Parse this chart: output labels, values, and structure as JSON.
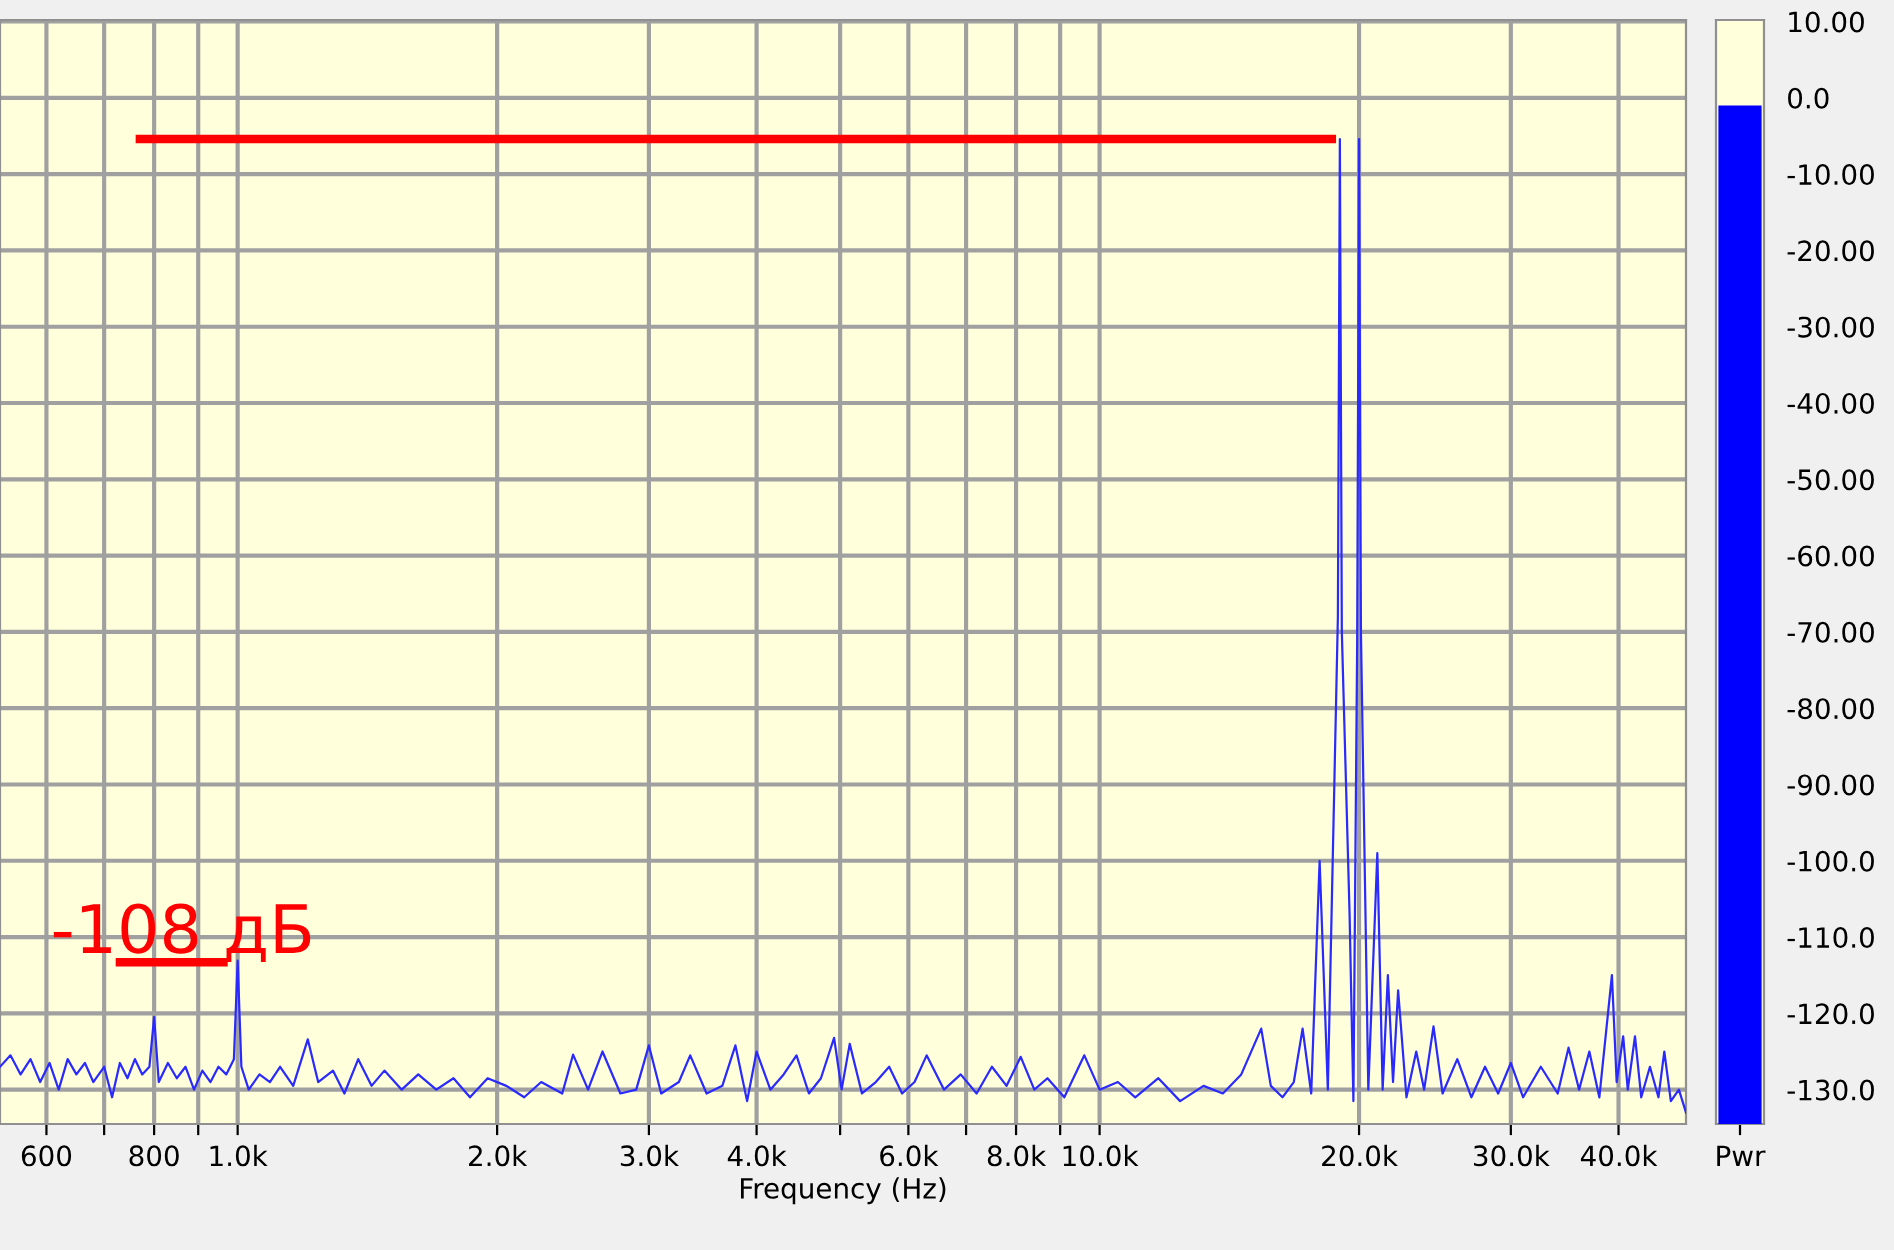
{
  "chart_data": [
    {
      "type": "line",
      "xlabel": "Frequency (Hz)",
      "log": "x",
      "grid": true,
      "tick_labels": "x",
      "xlim": [
        530,
        47900
      ],
      "xticks": [
        600,
        {
          "value": 700,
          "label": null
        },
        800,
        {
          "value": 900,
          "label": null
        },
        {
          "value": 1000,
          "label": "1.0k"
        },
        {
          "value": 2000,
          "label": "2.0k"
        },
        {
          "value": 3000,
          "label": "3.0k"
        },
        {
          "value": 4000,
          "label": "4.0k"
        },
        {
          "value": 5000,
          "label": null
        },
        {
          "value": 6000,
          "label": "6.0k"
        },
        {
          "value": 7000,
          "label": null
        },
        {
          "value": 8000,
          "label": "8.0k"
        },
        {
          "value": 9000,
          "label": null
        },
        {
          "value": 10000,
          "label": "10.0k"
        },
        {
          "value": 20000,
          "label": "20.0k"
        },
        {
          "value": 30000,
          "label": "30.0k"
        },
        {
          "value": 40000,
          "label": "40.0k"
        }
      ],
      "ylim": [
        -134.5,
        10.2
      ],
      "yticks": [
        10,
        0,
        -10,
        -20,
        -30,
        -40,
        -50,
        -60,
        -70,
        -80,
        -90,
        -100,
        -110,
        -120,
        -130
      ],
      "series": [
        {
          "color": "#2a2aff",
          "x": [
            530,
            545,
            560,
            575,
            590,
            605,
            620,
            635,
            650,
            665,
            680,
            700,
            715,
            730,
            745,
            760,
            775,
            790,
            800,
            810,
            830,
            850,
            870,
            890,
            910,
            930,
            950,
            970,
            990,
            1000,
            1010,
            1030,
            1060,
            1090,
            1120,
            1160,
            1206,
            1240,
            1290,
            1330,
            1380,
            1430,
            1480,
            1550,
            1620,
            1700,
            1780,
            1860,
            1950,
            2050,
            2150,
            2250,
            2380,
            2450,
            2550,
            2650,
            2780,
            2900,
            3000,
            3100,
            3250,
            3350,
            3500,
            3650,
            3780,
            3900,
            4000,
            4150,
            4300,
            4450,
            4600,
            4750,
            4920,
            5020,
            5130,
            5300,
            5500,
            5700,
            5900,
            6100,
            6300,
            6600,
            6900,
            7200,
            7500,
            7800,
            8100,
            8400,
            8700,
            9100,
            9600,
            10000,
            10500,
            11000,
            11700,
            12400,
            13200,
            13900,
            14600,
            15400,
            15800,
            16300,
            16800,
            17200,
            17600,
            18000,
            18400,
            18900,
            19000,
            19100,
            19500,
            19700,
            19900,
            20000,
            20100,
            20500,
            21000,
            21300,
            21600,
            21900,
            22200,
            22700,
            23300,
            23800,
            24400,
            25000,
            26000,
            27000,
            28000,
            29000,
            30000,
            31000,
            32500,
            34000,
            35000,
            36000,
            37000,
            38000,
            39300,
            39800,
            40500,
            41000,
            41800,
            42500,
            43500,
            44500,
            45200,
            46000,
            47000,
            47900
          ],
          "values": [
            -127,
            -125.5,
            -128,
            -126,
            -129,
            -126.5,
            -130,
            -126,
            -128,
            -126.5,
            -129,
            -127,
            -131,
            -126.5,
            -128.5,
            -126,
            -128,
            -127,
            -120.5,
            -129,
            -126.5,
            -128.5,
            -127,
            -130,
            -127.5,
            -129,
            -127,
            -128,
            -126,
            -113.1,
            -127,
            -130,
            -128,
            -129,
            -127,
            -129.5,
            -123.4,
            -129,
            -127.5,
            -130.5,
            -126,
            -129.5,
            -127.5,
            -130,
            -128,
            -130,
            -128.5,
            -131,
            -128.5,
            -129.5,
            -131,
            -129,
            -130.5,
            -125.4,
            -130,
            -125,
            -130.5,
            -130,
            -124.2,
            -130.5,
            -129,
            -125.5,
            -130.5,
            -129.5,
            -124.2,
            -131.5,
            -125,
            -130,
            -128,
            -125.5,
            -130.5,
            -128.5,
            -123.2,
            -130,
            -124,
            -130.5,
            -129,
            -127,
            -130.5,
            -129,
            -125.5,
            -130,
            -128,
            -130.5,
            -127,
            -129.5,
            -125.7,
            -130,
            -128.5,
            -131,
            -125.5,
            -130,
            -129,
            -131,
            -128.5,
            -131.5,
            -129.5,
            -130.5,
            -128,
            -122,
            -129.5,
            -131,
            -129,
            -122,
            -130.5,
            -100,
            -130,
            -68,
            -5.4,
            -70,
            -107,
            -131.5,
            -71,
            -5.4,
            -70,
            -130,
            -99,
            -130,
            -115,
            -129,
            -117,
            -131,
            -125,
            -130,
            -121.7,
            -130.5,
            -126,
            -131,
            -127,
            -130.5,
            -126.5,
            -131,
            -127,
            -130.5,
            -124.5,
            -130,
            -125,
            -131,
            -115,
            -129,
            -123,
            -130,
            -123,
            -131,
            -127,
            -131,
            -125,
            -131.5,
            -130,
            -133
          ]
        },
        {
          "color": "#ff0000",
          "x": [
            770,
            18600
          ],
          "values": [
            -5.4,
            -5.4
          ]
        },
        {
          "color": "#ff0000",
          "x": [
            730,
            963
          ],
          "values": [
            -113.3,
            -113.3
          ]
        }
      ],
      "annotations": [
        "-108 дБ"
      ]
    },
    {
      "type": "bar",
      "categories": [
        "Pwr"
      ],
      "values": [
        133.5
      ],
      "base": [
        -134.5
      ],
      "color": "#0000ff",
      "ylim": [
        -134.5,
        10.2
      ],
      "yticks": [
        {
          "value": 10,
          "label": "10.00"
        },
        {
          "value": 0,
          "label": "0.0"
        },
        {
          "value": -10,
          "label": "-10.00"
        },
        {
          "value": -20,
          "label": "-20.00"
        },
        {
          "value": -30,
          "label": "-30.00"
        },
        {
          "value": -40,
          "label": "-40.00"
        },
        {
          "value": -50,
          "label": "-50.00"
        },
        {
          "value": -60,
          "label": "-60.00"
        },
        {
          "value": -70,
          "label": "-70.00"
        },
        {
          "value": -80,
          "label": "-80.00"
        },
        {
          "value": -90,
          "label": "-90.00"
        },
        {
          "value": -100,
          "label": "-100.0"
        },
        {
          "value": -110,
          "label": "-110.0"
        },
        {
          "value": -120,
          "label": "-120.0"
        },
        {
          "value": -130,
          "label": "-130.0"
        }
      ]
    }
  ]
}
